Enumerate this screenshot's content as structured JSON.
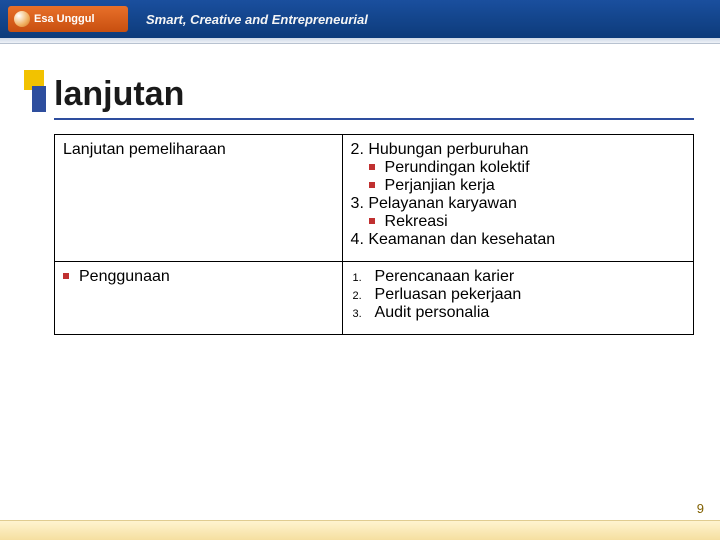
{
  "header": {
    "logo_text": "Esa Unggul",
    "tagline": "Smart, Creative and Entrepreneurial"
  },
  "title": "lanjutan",
  "table": {
    "row1": {
      "left": "Lanjutan pemeliharaan",
      "r2": "2. Hubungan perburuhan",
      "r2a": "Perundingan kolektif",
      "r2b": "Perjanjian kerja",
      "r3": "3. Pelayanan karyawan",
      "r3a": "Rekreasi",
      "r4": "4. Keamanan dan kesehatan"
    },
    "row2": {
      "left": "Penggunaan",
      "n1": "1.",
      "i1": "Perencanaan karier",
      "n2": "2.",
      "i2": "Perluasan pekerjaan",
      "n3": "3.",
      "i3": "Audit personalia"
    }
  },
  "page_number": "9",
  "colors": {
    "header_bg": "#1a4f9e",
    "logo_bg": "#e8702a",
    "accent_yellow": "#f2c200",
    "accent_blue": "#2e4e9e",
    "bullet_red": "#c03030",
    "footer_bg": "#f5dfa0"
  }
}
